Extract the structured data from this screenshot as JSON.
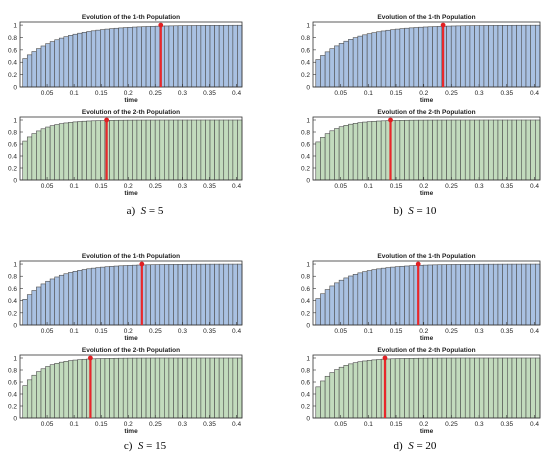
{
  "figure": {
    "captions": [
      {
        "prefix": "a)",
        "var": "S",
        "rest": " = 5"
      },
      {
        "prefix": "b)",
        "var": "S",
        "rest": " = 10"
      },
      {
        "prefix": "c)",
        "var": "S",
        "rest": " = 15"
      },
      {
        "prefix": "d)",
        "var": "S",
        "rest": " = 20"
      }
    ]
  },
  "colors": {
    "pop1_fill": "#a9c1e2",
    "pop2_fill": "#c2dbbd",
    "bar_edge": "#4d4d4d",
    "marker_line": "#e8282b",
    "marker_dot": "#e01f22",
    "axes_bg": "#ffffff",
    "axes_edge": "#333333"
  },
  "chart_data": [
    {
      "type": "bar",
      "panel": "a",
      "population": 1,
      "title": "Evolution of the 1-th Population",
      "xlabel": "time",
      "ylabel": "",
      "xlim": [
        0,
        0.41
      ],
      "ylim": [
        0,
        1.05
      ],
      "xticks": [
        0.05,
        0.1,
        0.15,
        0.2,
        0.25,
        0.3,
        0.35,
        0.4
      ],
      "yticks": [
        0,
        0.2,
        0.4,
        0.6,
        0.8,
        1
      ],
      "ytick_labels": [
        "0",
        "0.2",
        "0.4",
        "0.6",
        "0.8",
        "1"
      ],
      "bar_start": 0.005,
      "bar_end": 0.41,
      "bar_count": 48,
      "curve": {
        "y0": 0.42,
        "rate": 14
      },
      "marker_x": 0.26,
      "marker_y": 1.0
    },
    {
      "type": "bar",
      "panel": "a",
      "population": 2,
      "title": "Evolution of the 2-th Population",
      "xlabel": "time",
      "ylabel": "",
      "xlim": [
        0,
        0.41
      ],
      "ylim": [
        0,
        1.05
      ],
      "xticks": [
        0.05,
        0.1,
        0.15,
        0.2,
        0.25,
        0.3,
        0.35,
        0.4
      ],
      "yticks": [
        0,
        0.2,
        0.4,
        0.6,
        0.8,
        1
      ],
      "ytick_labels": [
        "0",
        "0.2",
        "0.4",
        "0.6",
        "0.8",
        "1"
      ],
      "bar_start": 0.005,
      "bar_end": 0.41,
      "bar_count": 48,
      "curve": {
        "y0": 0.6,
        "rate": 26
      },
      "marker_x": 0.16,
      "marker_y": 1.0
    },
    {
      "type": "bar",
      "panel": "b",
      "population": 1,
      "title": "Evolution of the 1-th Population",
      "xlabel": "time",
      "ylabel": "",
      "xlim": [
        0,
        0.41
      ],
      "ylim": [
        0,
        1.05
      ],
      "xticks": [
        0.05,
        0.1,
        0.15,
        0.2,
        0.25,
        0.3,
        0.35,
        0.4
      ],
      "yticks": [
        0,
        0.2,
        0.4,
        0.6,
        0.8,
        1
      ],
      "ytick_labels": [
        "0",
        "0.2",
        "0.4",
        "0.6",
        "0.8",
        "1"
      ],
      "bar_start": 0.005,
      "bar_end": 0.41,
      "bar_count": 48,
      "curve": {
        "y0": 0.4,
        "rate": 15
      },
      "marker_x": 0.235,
      "marker_y": 1.0
    },
    {
      "type": "bar",
      "panel": "b",
      "population": 2,
      "title": "Evolution of the 2-th Population",
      "xlabel": "time",
      "ylabel": "",
      "xlim": [
        0,
        0.41
      ],
      "ylim": [
        0,
        1.05
      ],
      "xticks": [
        0.05,
        0.1,
        0.15,
        0.2,
        0.25,
        0.3,
        0.35,
        0.4
      ],
      "yticks": [
        0,
        0.2,
        0.4,
        0.6,
        0.8,
        1
      ],
      "ytick_labels": [
        "0",
        "0.2",
        "0.4",
        "0.6",
        "0.8",
        "1"
      ],
      "bar_start": 0.005,
      "bar_end": 0.41,
      "bar_count": 48,
      "curve": {
        "y0": 0.58,
        "rate": 28
      },
      "marker_x": 0.14,
      "marker_y": 1.0
    },
    {
      "type": "bar",
      "panel": "c",
      "population": 1,
      "title": "Evolution of the 1-th Population",
      "xlabel": "time",
      "ylabel": "",
      "xlim": [
        0,
        0.41
      ],
      "ylim": [
        0,
        1.05
      ],
      "xticks": [
        0.05,
        0.1,
        0.15,
        0.2,
        0.25,
        0.3,
        0.35,
        0.4
      ],
      "yticks": [
        0,
        0.2,
        0.4,
        0.6,
        0.8,
        1
      ],
      "ytick_labels": [
        "0",
        "0.2",
        "0.4",
        "0.6",
        "0.8",
        "1"
      ],
      "bar_start": 0.005,
      "bar_end": 0.41,
      "bar_count": 48,
      "curve": {
        "y0": 0.37,
        "rate": 17
      },
      "marker_x": 0.225,
      "marker_y": 1.0
    },
    {
      "type": "bar",
      "panel": "c",
      "population": 2,
      "title": "Evolution of the 2-th Population",
      "xlabel": "time",
      "ylabel": "",
      "xlim": [
        0,
        0.41
      ],
      "ylim": [
        0,
        1.05
      ],
      "xticks": [
        0.05,
        0.1,
        0.15,
        0.2,
        0.25,
        0.3,
        0.35,
        0.4
      ],
      "yticks": [
        0,
        0.2,
        0.4,
        0.6,
        0.8,
        1
      ],
      "ytick_labels": [
        "0",
        "0.2",
        "0.4",
        "0.6",
        "0.8",
        "1"
      ],
      "bar_start": 0.005,
      "bar_end": 0.41,
      "bar_count": 48,
      "curve": {
        "y0": 0.47,
        "rate": 28
      },
      "marker_x": 0.13,
      "marker_y": 1.0
    },
    {
      "type": "bar",
      "panel": "d",
      "population": 1,
      "title": "Evolution of the 1-th Population",
      "xlabel": "time",
      "ylabel": "",
      "xlim": [
        0,
        0.41
      ],
      "ylim": [
        0,
        1.05
      ],
      "xticks": [
        0.05,
        0.1,
        0.15,
        0.2,
        0.25,
        0.3,
        0.35,
        0.4
      ],
      "yticks": [
        0,
        0.2,
        0.4,
        0.6,
        0.8,
        1
      ],
      "ytick_labels": [
        "0",
        "0.2",
        "0.4",
        "0.6",
        "0.8",
        "1"
      ],
      "bar_start": 0.005,
      "bar_end": 0.41,
      "bar_count": 48,
      "curve": {
        "y0": 0.38,
        "rate": 18
      },
      "marker_x": 0.19,
      "marker_y": 1.0
    },
    {
      "type": "bar",
      "panel": "d",
      "population": 2,
      "title": "Evolution of the 2-th Population",
      "xlabel": "time",
      "ylabel": "",
      "xlim": [
        0,
        0.41
      ],
      "ylim": [
        0,
        1.05
      ],
      "xticks": [
        0.05,
        0.1,
        0.15,
        0.2,
        0.25,
        0.3,
        0.35,
        0.4
      ],
      "yticks": [
        0,
        0.2,
        0.4,
        0.6,
        0.8,
        1
      ],
      "ytick_labels": [
        "0",
        "0.2",
        "0.4",
        "0.6",
        "0.8",
        "1"
      ],
      "bar_start": 0.005,
      "bar_end": 0.41,
      "bar_count": 48,
      "curve": {
        "y0": 0.45,
        "rate": 27
      },
      "marker_x": 0.13,
      "marker_y": 1.0
    }
  ]
}
